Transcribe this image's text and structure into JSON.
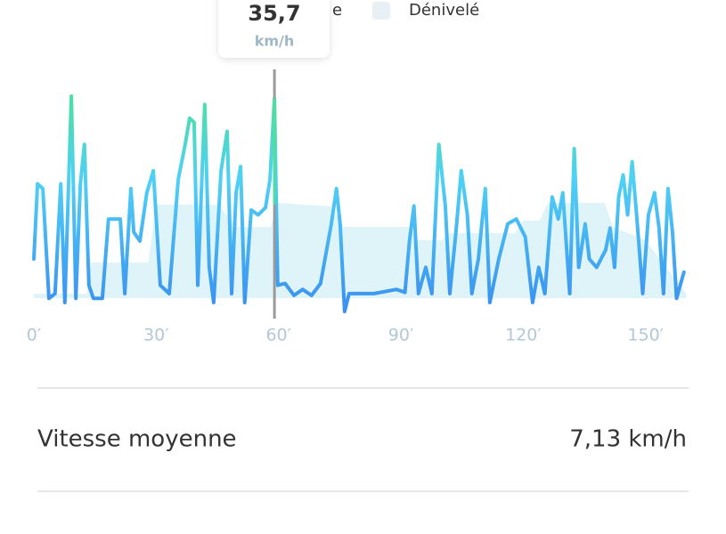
{
  "chart_data": {
    "type": "line",
    "xlim": [
      0,
      160
    ],
    "xticks": [
      {
        "value": 0,
        "label": "0′"
      },
      {
        "value": 30,
        "label": "30′"
      },
      {
        "value": 60,
        "label": "60′"
      },
      {
        "value": 90,
        "label": "90′"
      },
      {
        "value": 120,
        "label": "120′"
      },
      {
        "value": 150,
        "label": "150′"
      }
    ],
    "series": [
      {
        "name": "e",
        "color": "#3a8ff0",
        "x": [
          0,
          0.9,
          2.2,
          3.7,
          5.2,
          6.6,
          7.6,
          9.2,
          10.3,
          11.4,
          12.4,
          13.5,
          14.6,
          16.8,
          18.3,
          21.2,
          22.3,
          23.8,
          24.5,
          26.0,
          27.7,
          29.3,
          31.0,
          33.2,
          35.4,
          37.1,
          38.2,
          39.3,
          40.2,
          41.9,
          43.0,
          44.1,
          45.9,
          47.4,
          48.5,
          49.6,
          50.7,
          51.7,
          53.3,
          55.0,
          56.8,
          57.9,
          59.0,
          59.8,
          61.6,
          63.8,
          65.9,
          68.1,
          70.3,
          72.9,
          74.2,
          75.1,
          76.2,
          77.3,
          83.4,
          88.9,
          91.0,
          92.1,
          93.2,
          94.3,
          96.1,
          97.6,
          99.3,
          100.9,
          102.0,
          103.5,
          104.8,
          106.3,
          107.4,
          109.0,
          110.7,
          111.8,
          114.0,
          116.2,
          118.3,
          120.5,
          122.3,
          123.8,
          125.3,
          127.1,
          128.6,
          129.7,
          131.4,
          132.5,
          133.6,
          135.2,
          136.2,
          138.0,
          140.2,
          141.3,
          142.4,
          143.4,
          144.5,
          145.6,
          146.7,
          147.8,
          149.3,
          150.7,
          152.2,
          153.3,
          154.4,
          155.5,
          156.6,
          157.6,
          159.4
        ],
        "values": [
          8.8,
          21.4,
          20.6,
          2.2,
          3.0,
          21.4,
          1.5,
          36.1,
          2.2,
          21.4,
          28.0,
          4.4,
          2.2,
          2.2,
          15.5,
          15.5,
          3.0,
          20.6,
          13.3,
          11.8,
          19.9,
          23.6,
          4.4,
          3.0,
          22.1,
          28.0,
          32.4,
          31.7,
          4.4,
          34.7,
          7.4,
          1.5,
          23.6,
          30.2,
          3.0,
          19.9,
          24.3,
          1.5,
          17.0,
          16.2,
          17.4,
          22.1,
          35.7,
          4.4,
          4.7,
          2.7,
          3.7,
          2.7,
          4.7,
          14.5,
          20.6,
          14.7,
          0,
          3.0,
          3.0,
          3.7,
          3.2,
          11.8,
          17.7,
          3.0,
          7.4,
          3.0,
          28.0,
          17.7,
          3.0,
          13.3,
          23.6,
          16.2,
          3.0,
          8.8,
          20.6,
          1.5,
          8.8,
          14.7,
          15.5,
          12.5,
          1.5,
          7.4,
          3.0,
          19.2,
          15.5,
          19.9,
          3.0,
          27.3,
          7.4,
          14.7,
          8.8,
          7.4,
          10.3,
          14.0,
          7.4,
          19.2,
          22.9,
          16.2,
          25.1,
          16.2,
          3.0,
          16.2,
          19.9,
          14.0,
          3.0,
          20.6,
          13.3,
          2.2,
          6.6
        ]
      },
      {
        "name": "Dénivelé",
        "color": "#dff4f8",
        "x": [
          0,
          13,
          14,
          28,
          30,
          45,
          50,
          58,
          60,
          73,
          76,
          92,
          94,
          100,
          102,
          118,
          120,
          124,
          126,
          140,
          142,
          150,
          155,
          160
        ],
        "values": [
          20,
          20,
          55,
          55,
          120,
          120,
          95,
          95,
          122,
          118,
          95,
          95,
          80,
          80,
          88,
          88,
          102,
          102,
          122,
          122,
          95,
          80,
          50,
          20
        ]
      }
    ],
    "tooltip": {
      "x": 59.0,
      "value": 35.7,
      "label": "35,7",
      "unit": "km/h"
    }
  },
  "stats": [
    {
      "label": "Vitesse moyenne",
      "value": "7,13 km/h"
    }
  ]
}
